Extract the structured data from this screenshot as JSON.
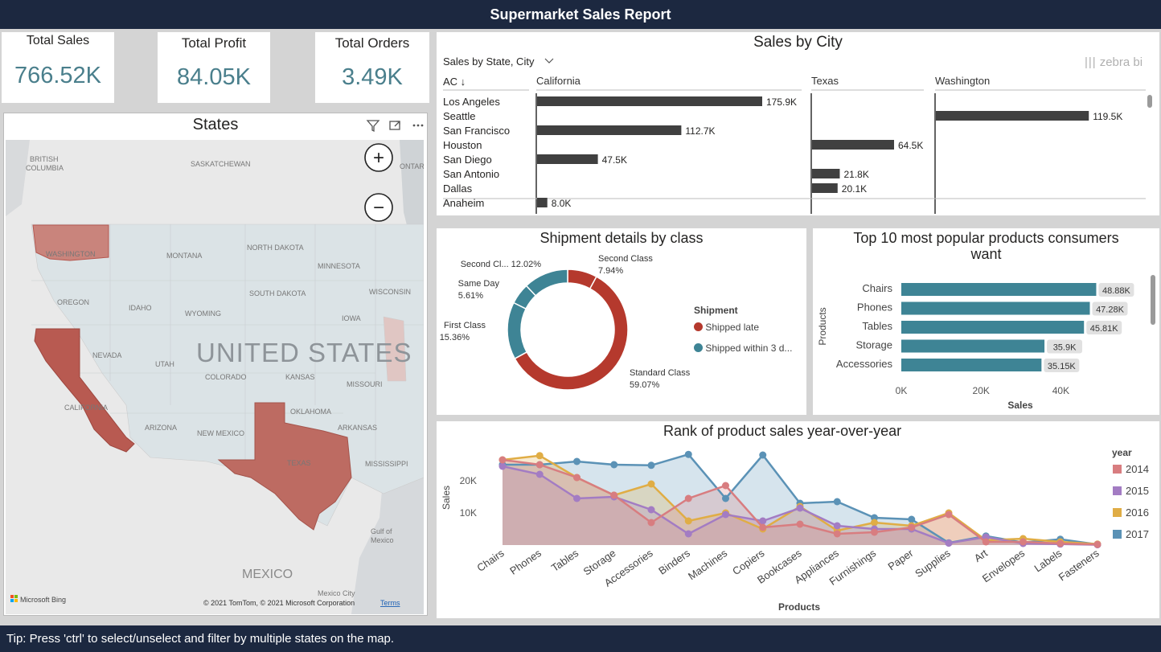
{
  "header": {
    "title": "Supermarket Sales Report"
  },
  "footer": {
    "tip": "Tip: Press 'ctrl' to select/unselect and filter by multiple states on the map."
  },
  "kpis": [
    {
      "label": "Total Sales",
      "value": "766.52K"
    },
    {
      "label": "Total Profit",
      "value": "84.05K"
    },
    {
      "label": "Total Orders",
      "value": "3.49K"
    }
  ],
  "map": {
    "title": "States",
    "country_label": "UNITED STATES",
    "mexico_label": "MEXICO",
    "mexico_city": "Mexico City",
    "gulf_label_1": "Gulf of",
    "gulf_label_2": "Mexico",
    "attribution": "© 2021 TomTom, © 2021 Microsoft Corporation",
    "terms": "Terms",
    "bing": "Microsoft Bing",
    "zoom_in": "+",
    "zoom_out": "−",
    "labels": {
      "bc1": "BRITISH",
      "bc2": "COLUMBIA",
      "sask": "SASKATCHEWAN",
      "ont": "ONTARIO",
      "wa": "WASHINGTON",
      "mt": "MONTANA",
      "nd": "NORTH DAKOTA",
      "mn": "MINNESOTA",
      "or": "OREGON",
      "id": "IDAHO",
      "wy": "WYOMING",
      "sd": "SOUTH DAKOTA",
      "wi": "WISCONSIN",
      "ia": "IOWA",
      "nv": "NEVADA",
      "ut": "UTAH",
      "co": "COLORADO",
      "ks": "KANSAS",
      "mo": "MISSOURI",
      "ca": "CALIFORNIA",
      "az": "ARIZONA",
      "nm": "NEW MEXICO",
      "ok": "OKLAHOMA",
      "ar": "ARKANSAS",
      "tx": "TEXAS",
      "ms": "MISSISSIPPI"
    },
    "highlight_color": "#b5574f"
  },
  "city": {
    "title": "Sales by City",
    "dropdown": "Sales by State, City",
    "sort": "AC ↓",
    "brand": "zebra bi",
    "groups": [
      "California",
      "Texas",
      "Washington"
    ],
    "rows": [
      {
        "city": "Los Angeles",
        "group": 0,
        "value": 175.9,
        "label": "175.9K"
      },
      {
        "city": "Seattle",
        "group": 2,
        "value": 119.5,
        "label": "119.5K"
      },
      {
        "city": "San Francisco",
        "group": 0,
        "value": 112.7,
        "label": "112.7K"
      },
      {
        "city": "Houston",
        "group": 1,
        "value": 64.5,
        "label": "64.5K"
      },
      {
        "city": "San Diego",
        "group": 0,
        "value": 47.5,
        "label": "47.5K"
      },
      {
        "city": "San Antonio",
        "group": 1,
        "value": 21.8,
        "label": "21.8K"
      },
      {
        "city": "Dallas",
        "group": 1,
        "value": 20.1,
        "label": "20.1K"
      },
      {
        "city": "Anaheim",
        "group": 0,
        "value": 8.0,
        "label": "8.0K"
      }
    ]
  },
  "shipment": {
    "title": "Shipment details by class",
    "legend_title": "Shipment",
    "legend": [
      {
        "label": "Shipped late",
        "color": "#b5392d"
      },
      {
        "label": "Shipped within 3 d...",
        "color": "#3e8495"
      }
    ],
    "slices": [
      {
        "name": "Second Class",
        "pct": "7.94%",
        "value": 7.94,
        "color": "#b5392d"
      },
      {
        "name": "Standard Class",
        "pct": "59.07%",
        "value": 59.07,
        "color": "#b5392d"
      },
      {
        "name": "First Class",
        "pct": "15.36%",
        "value": 15.36,
        "color": "#3e8495"
      },
      {
        "name": "Same Day",
        "pct": "5.61%",
        "value": 5.61,
        "color": "#3e8495"
      },
      {
        "name": "Second Cl...",
        "pct": "12.02%",
        "value": 12.02,
        "color": "#3e8495"
      }
    ]
  },
  "top10": {
    "title_1": "Top 10 most popular products consumers",
    "title_2": "want",
    "ylabel": "Products",
    "xlabel": "Sales",
    "ticks": [
      "0K",
      "20K",
      "40K"
    ],
    "color": "#3e8495"
  },
  "rank": {
    "title": "Rank of product sales year-over-year",
    "ylabel": "Sales",
    "xlabel": "Products",
    "yticks": [
      "10K",
      "20K"
    ],
    "legend_title": "year"
  },
  "chart_data": [
    {
      "type": "bar",
      "title": "Top 10 most popular products consumers want",
      "categories": [
        "Chairs",
        "Phones",
        "Tables",
        "Storage",
        "Accessories"
      ],
      "values": [
        48880,
        47280,
        45810,
        35900,
        35150
      ],
      "labels": [
        "48.88K",
        "47.28K",
        "45.81K",
        "35.9K",
        "35.15K"
      ],
      "xlabel": "Sales",
      "ylabel": "Products",
      "xlim": [
        0,
        50000
      ]
    },
    {
      "type": "area",
      "title": "Rank of product sales year-over-year",
      "xlabel": "Products",
      "ylabel": "Sales",
      "ylim": [
        0,
        28000
      ],
      "categories": [
        "Chairs",
        "Phones",
        "Tables",
        "Storage",
        "Accessories",
        "Binders",
        "Machines",
        "Copiers",
        "Bookcases",
        "Appliances",
        "Furnishings",
        "Paper",
        "Supplies",
        "Art",
        "Envelopes",
        "Labels",
        "Fasteners"
      ],
      "series": [
        {
          "name": "2014",
          "color": "#d87d80",
          "values": [
            26500,
            25000,
            21000,
            15500,
            7000,
            14500,
            18500,
            5500,
            6500,
            3500,
            4000,
            5500,
            9500,
            1000,
            1000,
            500,
            200
          ]
        },
        {
          "name": "2015",
          "color": "#a37cc3",
          "values": [
            24500,
            22000,
            14500,
            15000,
            11000,
            3500,
            9500,
            7500,
            11500,
            6000,
            5000,
            5000,
            600,
            2500,
            500,
            300,
            100
          ]
        },
        {
          "name": "2016",
          "color": "#e0ad45",
          "values": [
            26500,
            27800,
            21000,
            15500,
            19000,
            7500,
            10000,
            5000,
            12000,
            4500,
            7000,
            6000,
            10000,
            1500,
            2000,
            1000,
            300
          ]
        },
        {
          "name": "2017",
          "color": "#5b92b6",
          "values": [
            25000,
            25000,
            26000,
            25000,
            24800,
            28200,
            14500,
            28000,
            13000,
            13500,
            8500,
            8000,
            700,
            2800,
            800,
            1800,
            200
          ]
        }
      ]
    }
  ]
}
